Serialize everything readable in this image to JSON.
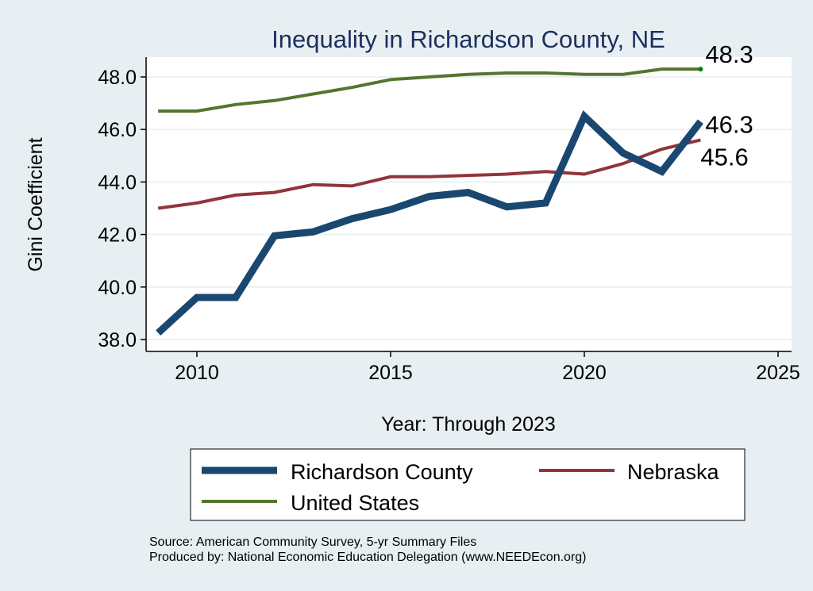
{
  "chart_data": {
    "type": "line",
    "title": "Inequality in Richardson County, NE",
    "xlabel": "Year: Through 2023",
    "ylabel": "Gini Coefficient",
    "xlim": [
      2008.3,
      2025.4
    ],
    "ylim": [
      37.6,
      48.75
    ],
    "xticks": [
      2010,
      2015,
      2020,
      2025
    ],
    "yticks": [
      38.0,
      40.0,
      42.0,
      44.0,
      46.0,
      48.0
    ],
    "ytick_labels": [
      "38.0",
      "40.0",
      "42.0",
      "44.0",
      "46.0",
      "48.0"
    ],
    "grid": true,
    "legend_placement": "bottom",
    "x": [
      2009,
      2010,
      2011,
      2012,
      2013,
      2014,
      2015,
      2016,
      2017,
      2018,
      2019,
      2020,
      2021,
      2022,
      2023
    ],
    "series": [
      {
        "name": "Richardson County",
        "color": "#1a476f",
        "width": 9,
        "end_label": "46.3",
        "values": [
          38.25,
          39.6,
          39.6,
          41.95,
          42.1,
          42.6,
          42.95,
          43.45,
          43.6,
          43.05,
          43.2,
          46.5,
          45.1,
          44.4,
          46.3
        ]
      },
      {
        "name": "Nebraska",
        "color": "#90353b",
        "width": 4,
        "end_label": "45.6",
        "values": [
          43.0,
          43.2,
          43.5,
          43.6,
          43.9,
          43.85,
          44.2,
          44.2,
          44.25,
          44.3,
          44.4,
          44.3,
          44.7,
          45.25,
          45.6
        ]
      },
      {
        "name": "United States",
        "color": "#55752f",
        "width": 4,
        "end_label": "48.3",
        "values": [
          46.7,
          46.7,
          46.95,
          47.1,
          47.35,
          47.6,
          47.9,
          48.0,
          48.1,
          48.15,
          48.15,
          48.1,
          48.1,
          48.3,
          48.3
        ]
      }
    ],
    "notes": [
      "Source: American Community Survey, 5-yr Summary Files",
      "Produced by: National Economic Education Delegation (www.NEEDEcon.org)"
    ]
  }
}
